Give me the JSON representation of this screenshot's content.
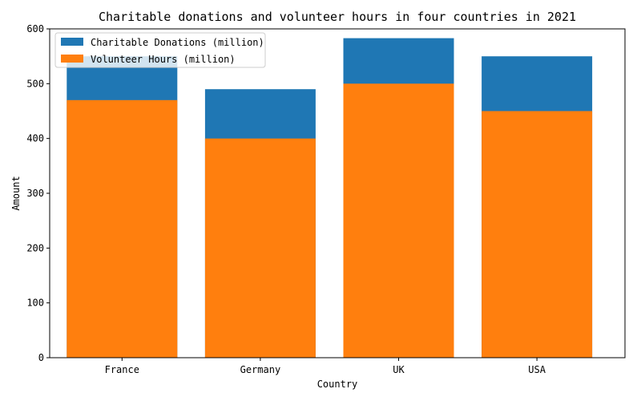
{
  "chart_data": {
    "type": "bar",
    "title": "Charitable donations and volunteer hours in four countries in 2021",
    "xlabel": "Country",
    "ylabel": "Amount",
    "categories": [
      "France",
      "Germany",
      "UK",
      "USA"
    ],
    "ylim": [
      0,
      600
    ],
    "yticks": [
      0,
      100,
      200,
      300,
      400,
      500,
      600
    ],
    "grid": false,
    "legend_position": "top-left",
    "series": [
      {
        "name": "Charitable Donations (million)",
        "color": "#1f77b4",
        "values": [
          550,
          490,
          583,
          550
        ]
      },
      {
        "name": "Volunteer Hours (million)",
        "color": "#ff7f0e",
        "values": [
          470,
          400,
          500,
          450
        ]
      }
    ]
  }
}
